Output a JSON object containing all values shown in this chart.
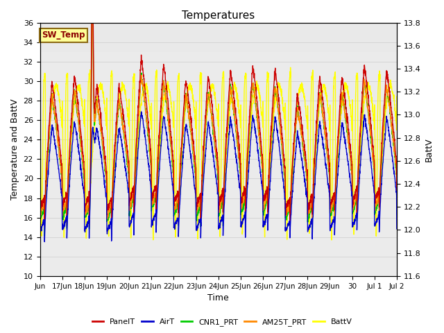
{
  "title": "Temperatures",
  "xlabel": "Time",
  "ylabel_left": "Temperature and BattV",
  "ylabel_right": "BattV",
  "ylim_left": [
    10,
    36
  ],
  "ylim_right": [
    11.6,
    13.8
  ],
  "annotation_text": "SW_Temp",
  "annotation_color": "#8B0000",
  "annotation_bg": "#FFFF99",
  "annotation_border": "#8B6914",
  "series_colors": {
    "PanelT": "#CC0000",
    "AirT": "#0000CC",
    "CNR1_PRT": "#00CC00",
    "AM25T_PRT": "#FF8800",
    "BattV": "#FFFF00"
  },
  "x_tick_labels": [
    "Jun",
    "17Jun",
    "18Jun",
    "19Jun",
    "20Jun",
    "21Jun",
    "22Jun",
    "23Jun",
    "24Jun",
    "25Jun",
    "26Jun",
    "27Jun",
    "28Jun",
    "29Jun",
    "30",
    "Jul 1",
    "Jul 2"
  ],
  "grid_color": "#CCCCCC",
  "bg_color": "#FFFFFF",
  "plot_bg": "#EBEBEB",
  "plot_bg_upper": "#D8D8D8",
  "linewidth": 1.0,
  "num_days": 16,
  "pts_per_day": 144,
  "yticks_left": [
    10,
    12,
    14,
    16,
    18,
    20,
    22,
    24,
    26,
    28,
    30,
    32,
    34,
    36
  ],
  "yticks_right": [
    11.6,
    11.8,
    12.0,
    12.2,
    12.4,
    12.6,
    12.8,
    13.0,
    13.2,
    13.4,
    13.6,
    13.8
  ]
}
